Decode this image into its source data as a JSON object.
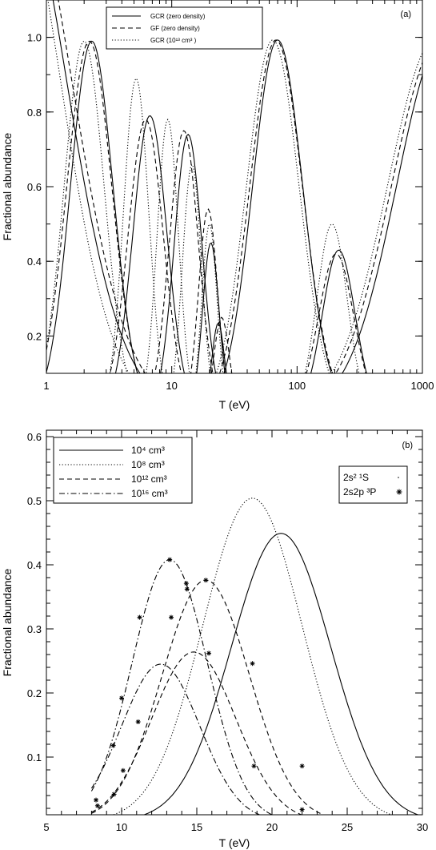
{
  "chart_data": [
    {
      "panel_label": "(a)",
      "type": "line",
      "xlabel": "T (eV)",
      "ylabel": "Fractional abundance",
      "xscale": "log",
      "xlim": [
        1,
        1000
      ],
      "ylim": [
        0.1,
        1.1
      ],
      "x_ticks": [
        "1",
        "10",
        "100",
        "1000"
      ],
      "y_ticks": [
        "0.2",
        "0.4",
        "0.6",
        "0.8",
        "1.0"
      ],
      "legend_position": "top-center",
      "legend": [
        {
          "label": "GCR (zero density)",
          "dash": "solid"
        },
        {
          "label": "GF (zero density)",
          "dash": "dashed"
        },
        {
          "label": "GCR (10¹³ cm³ )",
          "dash": "dotted"
        }
      ],
      "series": [
        {
          "group": "solid",
          "peaks": [
            {
              "x": 0.5,
              "y": 1.5,
              "w": 0.45
            },
            {
              "x": 2.3,
              "y": 0.99,
              "w": 0.17
            },
            {
              "x": 6.7,
              "y": 0.79,
              "w": 0.135
            },
            {
              "x": 13.5,
              "y": 0.74,
              "w": 0.11
            },
            {
              "x": 20.5,
              "y": 0.45,
              "w": 0.065
            },
            {
              "x": 23.5,
              "y": 0.235,
              "w": 0.05
            },
            {
              "x": 70,
              "y": 0.993,
              "w": 0.2
            },
            {
              "x": 215,
              "y": 0.43,
              "w": 0.13
            },
            {
              "x": 1500,
              "y": 1.0,
              "w": 0.38
            }
          ]
        },
        {
          "group": "dashed",
          "peaks": [
            {
              "x": 0.55,
              "y": 1.5,
              "w": 0.45
            },
            {
              "x": 2.2,
              "y": 0.99,
              "w": 0.18
            },
            {
              "x": 6.2,
              "y": 0.78,
              "w": 0.14
            },
            {
              "x": 12.5,
              "y": 0.75,
              "w": 0.115
            },
            {
              "x": 19.5,
              "y": 0.54,
              "w": 0.075
            },
            {
              "x": 25,
              "y": 0.25,
              "w": 0.06
            },
            {
              "x": 68,
              "y": 0.993,
              "w": 0.21
            },
            {
              "x": 205,
              "y": 0.42,
              "w": 0.14
            },
            {
              "x": 1400,
              "y": 1.0,
              "w": 0.39
            }
          ]
        },
        {
          "group": "dotted",
          "peaks": [
            {
              "x": 0.48,
              "y": 1.5,
              "w": 0.42
            },
            {
              "x": 2.0,
              "y": 0.99,
              "w": 0.16
            },
            {
              "x": 5.2,
              "y": 0.89,
              "w": 0.1
            },
            {
              "x": 9.3,
              "y": 0.78,
              "w": 0.085
            },
            {
              "x": 14.5,
              "y": 0.66,
              "w": 0.075
            },
            {
              "x": 20,
              "y": 0.5,
              "w": 0.06
            },
            {
              "x": 64,
              "y": 0.993,
              "w": 0.21
            },
            {
              "x": 190,
              "y": 0.5,
              "w": 0.12
            },
            {
              "x": 1300,
              "y": 1.0,
              "w": 0.39
            }
          ]
        }
      ]
    },
    {
      "panel_label": "(b)",
      "type": "line",
      "xlabel": "T (eV)",
      "ylabel": "Fractional abundance",
      "xlim": [
        5,
        30
      ],
      "ylim": [
        0.01,
        0.61
      ],
      "x_ticks": [
        "5",
        "10",
        "15",
        "20",
        "25",
        "30"
      ],
      "y_ticks": [
        "0.1",
        "0.2",
        "0.3",
        "0.4",
        "0.5",
        "0.6"
      ],
      "legend_position": "top-left",
      "legend": [
        {
          "label": "10⁴ cm³",
          "dash": "solid"
        },
        {
          "label": "10⁸ cm³",
          "dash": "dotted"
        },
        {
          "label": "10¹² cm³",
          "dash": "dashed"
        },
        {
          "label": "10¹⁶ cm³",
          "dash": "dashdot"
        }
      ],
      "marker_legend": [
        {
          "label": "2s² ¹S",
          "marker": "dot"
        },
        {
          "label": "2s2p ³P",
          "marker": "asterisk"
        }
      ],
      "series": [
        {
          "density": "1e4",
          "dash": "solid",
          "peak_x": 20.6,
          "peak_y": 0.449,
          "width": 3.3
        },
        {
          "density": "1e8",
          "dash": "dotted",
          "peak_x": 18.7,
          "peak_y": 0.504,
          "width": 3.3
        },
        {
          "density": "1e12",
          "dash": "dashed",
          "peak_x": 15.6,
          "peak_y": 0.376,
          "width": 2.9
        },
        {
          "density": "1e12",
          "dash": "dashed",
          "peak_x": 14.8,
          "peak_y": 0.264,
          "width": 2.8
        },
        {
          "density": "1e16",
          "dash": "dashdot",
          "peak_x": 13.2,
          "peak_y": 0.408,
          "width": 2.5
        },
        {
          "density": "1e16",
          "dash": "dashdot",
          "peak_x": 12.6,
          "peak_y": 0.245,
          "width": 2.6
        }
      ],
      "markers_2s2p_3P": [
        [
          8.3,
          0.033
        ],
        [
          9.45,
          0.118
        ],
        [
          10.0,
          0.192
        ],
        [
          11.2,
          0.318
        ],
        [
          13.2,
          0.408
        ],
        [
          14.3,
          0.371
        ],
        [
          13.3,
          0.318
        ],
        [
          14.35,
          0.362
        ],
        [
          15.6,
          0.376
        ],
        [
          18.7,
          0.246
        ],
        [
          22.0,
          0.086
        ],
        [
          8.4,
          0.024
        ],
        [
          9.5,
          0.042
        ],
        [
          10.1,
          0.079
        ],
        [
          11.1,
          0.155
        ],
        [
          15.8,
          0.262
        ],
        [
          18.8,
          0.086
        ],
        [
          22.0,
          0.018
        ]
      ]
    }
  ]
}
